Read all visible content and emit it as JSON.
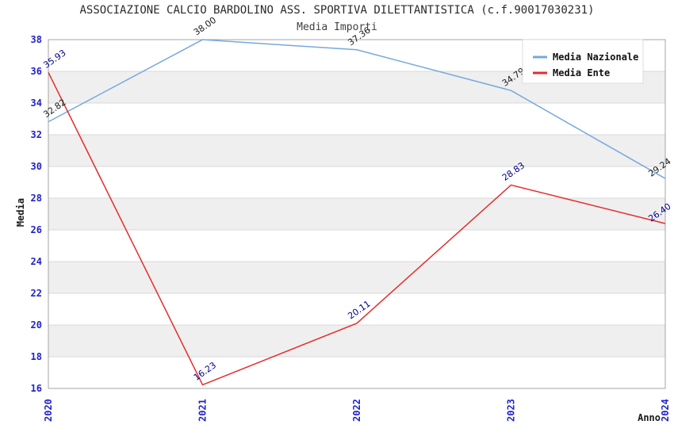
{
  "title": "ASSOCIAZIONE CALCIO BARDOLINO ASS. SPORTIVA DILETTANTISTICA (c.f.90017030231)",
  "subtitle": "Media Importi",
  "axes": {
    "x_label": "Anno",
    "y_label": "Media"
  },
  "legend": {
    "position": "top-right",
    "items": [
      {
        "label": "Media Nazionale",
        "color": "#74a9dd"
      },
      {
        "label": "Media Ente",
        "color": "#e62c2c"
      }
    ]
  },
  "style": {
    "tick_label_color": "#2222cc",
    "band_color": "#efefef",
    "grid_color": "#d8d8d8",
    "spine_color": "#a6a6a6",
    "background": "#ffffff",
    "national_label_color": "#1a1a1a",
    "ente_label_color": "#00008b"
  },
  "chart_data": {
    "type": "line",
    "title": "ASSOCIAZIONE CALCIO BARDOLINO ASS. SPORTIVA DILETTANTISTICA (c.f.90017030231)",
    "subtitle": "Media Importi",
    "xlabel": "Anno",
    "ylabel": "Media",
    "x": [
      "2020",
      "2021",
      "2022",
      "2023",
      "2024"
    ],
    "series": [
      {
        "name": "Media Nazionale",
        "color": "#74a9dd",
        "label_color": "#1a1a1a",
        "values": [
          32.82,
          38.0,
          37.36,
          34.79,
          29.24
        ]
      },
      {
        "name": "Media Ente",
        "color": "#e62c2c",
        "label_color": "#00008b",
        "values": [
          35.93,
          16.23,
          20.11,
          28.83,
          26.4
        ]
      }
    ],
    "ylim": [
      16,
      38
    ],
    "yticks": [
      16,
      18,
      20,
      22,
      24,
      26,
      28,
      30,
      32,
      34,
      36,
      38
    ],
    "grid": "horizontal gridlines with alternating gray bands",
    "legend_position": "top-right"
  }
}
